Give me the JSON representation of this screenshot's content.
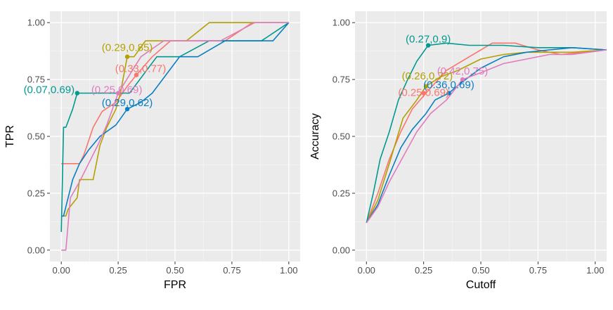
{
  "chart_data": [
    {
      "type": "line",
      "xlabel": "FPR",
      "ylabel": "TPR",
      "xlim": [
        -0.05,
        1.05
      ],
      "ylim": [
        -0.05,
        1.05
      ],
      "x_ticks": [
        0,
        0.25,
        0.5,
        0.75,
        1
      ],
      "x_tick_labels": [
        "0.00",
        "0.25",
        "0.50",
        "0.75",
        "1.00"
      ],
      "y_ticks": [
        0,
        0.25,
        0.5,
        0.75,
        1
      ],
      "y_tick_labels": [
        "0.00",
        "0.25",
        "0.50",
        "0.75",
        "1.00"
      ],
      "grid": true,
      "series": [
        {
          "name": "salmon",
          "color": "#F8766D",
          "x": [
            0,
            0.02,
            0.05,
            0.08,
            0.1,
            0.14,
            0.18,
            0.24,
            0.29,
            0.33,
            0.4,
            0.48,
            0.6,
            0.72,
            0.84,
            0.9,
            1.0
          ],
          "y": [
            0.38,
            0.38,
            0.38,
            0.38,
            0.42,
            0.54,
            0.61,
            0.65,
            0.72,
            0.77,
            0.85,
            0.92,
            0.92,
            0.92,
            1.0,
            1.0,
            1.0
          ]
        },
        {
          "name": "olive",
          "color": "#B4A000",
          "x": [
            0,
            0.02,
            0.03,
            0.07,
            0.08,
            0.1,
            0.14,
            0.17,
            0.2,
            0.24,
            0.26,
            0.29,
            0.32,
            0.37,
            0.42,
            0.48,
            0.55,
            0.65,
            0.75,
            0.85,
            1.0
          ],
          "y": [
            0.15,
            0.15,
            0.18,
            0.23,
            0.31,
            0.31,
            0.31,
            0.46,
            0.54,
            0.62,
            0.69,
            0.85,
            0.85,
            0.92,
            0.92,
            0.92,
            0.92,
            1.0,
            1.0,
            1.0,
            1.0
          ]
        },
        {
          "name": "teal",
          "color": "#00998F",
          "x": [
            0,
            0.01,
            0.02,
            0.05,
            0.07,
            0.1,
            0.2,
            0.3,
            0.42,
            0.52,
            0.65,
            0.88,
            1.0
          ],
          "y": [
            0.08,
            0.54,
            0.54,
            0.62,
            0.69,
            0.69,
            0.69,
            0.69,
            0.85,
            0.85,
            0.92,
            0.92,
            1.0
          ]
        },
        {
          "name": "blue",
          "color": "#0A7EC2",
          "x": [
            0,
            0.01,
            0.03,
            0.05,
            0.08,
            0.12,
            0.17,
            0.24,
            0.29,
            0.35,
            0.4,
            0.52,
            0.6,
            0.72,
            0.84,
            0.93,
            1.0
          ],
          "y": [
            0.15,
            0.15,
            0.23,
            0.31,
            0.38,
            0.44,
            0.5,
            0.55,
            0.62,
            0.65,
            0.69,
            0.85,
            0.85,
            0.92,
            0.92,
            0.92,
            1.0
          ]
        },
        {
          "name": "pink",
          "color": "#E07BBE",
          "x": [
            0,
            0.02,
            0.04,
            0.08,
            0.12,
            0.16,
            0.2,
            0.25,
            0.3,
            0.35,
            0.45,
            0.55,
            0.7,
            0.85,
            1.0
          ],
          "y": [
            0,
            0,
            0.23,
            0.3,
            0.38,
            0.46,
            0.55,
            0.69,
            0.77,
            0.85,
            0.92,
            0.92,
            0.92,
            1.0,
            1.0
          ]
        }
      ],
      "points": [
        {
          "x": 0.33,
          "y": 0.77,
          "label": "(0.33,0.77)",
          "color": "#F8766D"
        },
        {
          "x": 0.29,
          "y": 0.85,
          "label": "(0.29,0.85)",
          "color": "#B4A000"
        },
        {
          "x": 0.07,
          "y": 0.69,
          "label": "(0.07,0.69)",
          "color": "#00998F"
        },
        {
          "x": 0.29,
          "y": 0.62,
          "label": "(0.29,0.62)",
          "color": "#0A7EC2"
        },
        {
          "x": 0.25,
          "y": 0.69,
          "label": "(0.25,0.69)",
          "color": "#E07BBE"
        }
      ]
    },
    {
      "type": "line",
      "xlabel": "Cutoff",
      "ylabel": "Accuracy",
      "xlim": [
        -0.05,
        1.05
      ],
      "ylim": [
        -0.05,
        1.05
      ],
      "x_ticks": [
        0,
        0.25,
        0.5,
        0.75,
        1
      ],
      "x_tick_labels": [
        "0.00",
        "0.25",
        "0.50",
        "0.75",
        "1.00"
      ],
      "y_ticks": [
        0,
        0.25,
        0.5,
        0.75,
        1
      ],
      "y_tick_labels": [
        "0.00",
        "0.25",
        "0.50",
        "0.75",
        "1.00"
      ],
      "grid": true,
      "series": [
        {
          "name": "salmon",
          "color": "#F8766D",
          "x": [
            0,
            0.05,
            0.1,
            0.15,
            0.2,
            0.26,
            0.35,
            0.45,
            0.55,
            0.65,
            0.75,
            0.85,
            0.95,
            1.05
          ],
          "y": [
            0.12,
            0.25,
            0.4,
            0.52,
            0.62,
            0.69,
            0.79,
            0.85,
            0.91,
            0.91,
            0.88,
            0.86,
            0.87,
            0.88
          ]
        },
        {
          "name": "olive",
          "color": "#B4A000",
          "x": [
            0,
            0.05,
            0.1,
            0.16,
            0.22,
            0.26,
            0.32,
            0.4,
            0.5,
            0.6,
            0.7,
            0.8,
            0.9,
            1.05
          ],
          "y": [
            0.12,
            0.22,
            0.38,
            0.58,
            0.66,
            0.72,
            0.76,
            0.79,
            0.84,
            0.86,
            0.87,
            0.87,
            0.87,
            0.88
          ]
        },
        {
          "name": "teal",
          "color": "#00998F",
          "x": [
            0,
            0.03,
            0.06,
            0.1,
            0.14,
            0.18,
            0.22,
            0.27,
            0.35,
            0.45,
            0.6,
            0.75,
            0.9,
            1.05
          ],
          "y": [
            0.12,
            0.25,
            0.4,
            0.52,
            0.66,
            0.75,
            0.83,
            0.9,
            0.91,
            0.9,
            0.9,
            0.89,
            0.89,
            0.88
          ]
        },
        {
          "name": "blue",
          "color": "#0A7EC2",
          "x": [
            0,
            0.05,
            0.1,
            0.15,
            0.2,
            0.26,
            0.3,
            0.36,
            0.42,
            0.5,
            0.6,
            0.7,
            0.8,
            0.9,
            1.05
          ],
          "y": [
            0.12,
            0.2,
            0.33,
            0.45,
            0.53,
            0.6,
            0.66,
            0.69,
            0.74,
            0.8,
            0.85,
            0.87,
            0.88,
            0.89,
            0.88
          ]
        },
        {
          "name": "pink",
          "color": "#E07BBE",
          "x": [
            0,
            0.05,
            0.1,
            0.16,
            0.22,
            0.28,
            0.35,
            0.42,
            0.5,
            0.6,
            0.7,
            0.8,
            0.9,
            1.05
          ],
          "y": [
            0.12,
            0.19,
            0.3,
            0.41,
            0.52,
            0.6,
            0.66,
            0.75,
            0.78,
            0.82,
            0.84,
            0.86,
            0.86,
            0.88
          ]
        }
      ],
      "points": [
        {
          "x": 0.25,
          "y": 0.69,
          "label": "(0.25,0.69)",
          "color": "#F8766D"
        },
        {
          "x": 0.26,
          "y": 0.72,
          "label": "(0.26,0.72)",
          "color": "#B4A000"
        },
        {
          "x": 0.27,
          "y": 0.9,
          "label": "(0.27,0.9)",
          "color": "#00998F"
        },
        {
          "x": 0.36,
          "y": 0.69,
          "label": "(0.36,0.69)",
          "color": "#0A7EC2"
        },
        {
          "x": 0.42,
          "y": 0.75,
          "label": "(0.42,0.75)",
          "color": "#E07BBE"
        }
      ]
    }
  ]
}
